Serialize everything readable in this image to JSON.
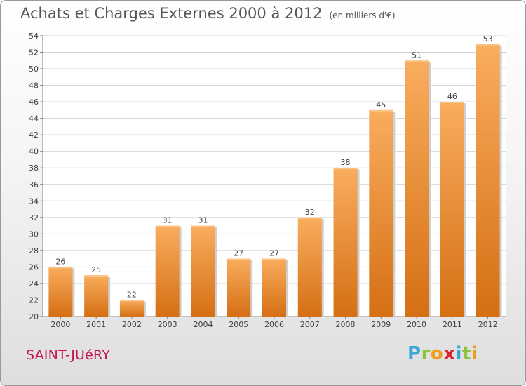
{
  "title": "Achats et Charges Externes 2000 à 2012",
  "unit_note": "(en milliers d'€)",
  "town": "SAINT-JUéRY",
  "brand": {
    "letters": [
      "P",
      "r",
      "o",
      "x",
      "i",
      "t",
      "i"
    ],
    "colors": [
      "#3aa7d8",
      "#8cc43c",
      "#f39c1c",
      "#d8272d",
      "#3aa7d8",
      "#8cc43c",
      "#f39c1c"
    ]
  },
  "colors": {
    "bar_light": "#f9ad5e",
    "bar_dark": "#d56f14",
    "grid": "#cfcfcf",
    "town": "#c8144e"
  },
  "chart_data": {
    "type": "bar",
    "title": "Achats et Charges Externes 2000 à 2012",
    "subtitle": "(en milliers d'€)",
    "categories": [
      "2000",
      "2001",
      "2002",
      "2003",
      "2004",
      "2005",
      "2006",
      "2007",
      "2008",
      "2009",
      "2010",
      "2011",
      "2012"
    ],
    "values": [
      26,
      25,
      22,
      31,
      31,
      27,
      27,
      32,
      38,
      45,
      51,
      46,
      53
    ],
    "ylim": [
      20,
      54
    ],
    "yticks": [
      20,
      22,
      24,
      26,
      28,
      30,
      32,
      34,
      36,
      38,
      40,
      42,
      44,
      46,
      48,
      50,
      52,
      54
    ],
    "grid": true,
    "xlabel": "",
    "ylabel": ""
  }
}
